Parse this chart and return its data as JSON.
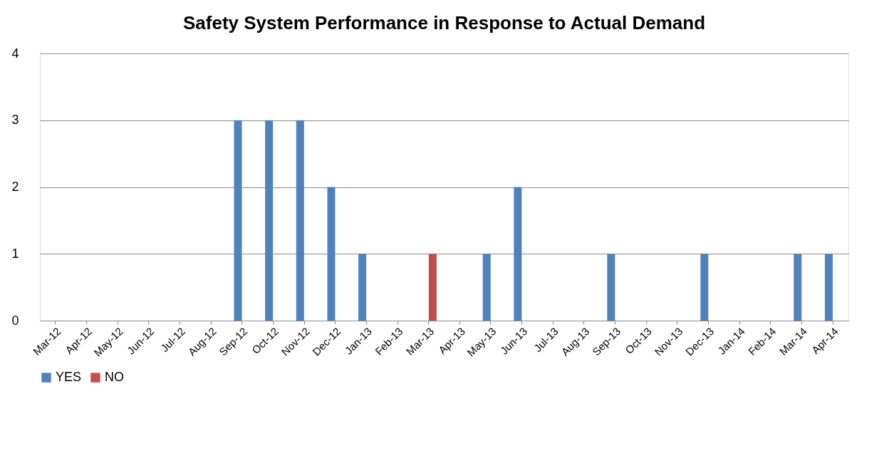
{
  "chart_data": {
    "type": "bar",
    "title": "Safety System Performance in Response to Actual Demand",
    "categories": [
      "Mar-12",
      "Apr-12",
      "May-12",
      "Jun-12",
      "Jul-12",
      "Aug-12",
      "Sep-12",
      "Oct-12",
      "Nov-12",
      "Dec-12",
      "Jan-13",
      "Feb-13",
      "Mar-13",
      "Apr-13",
      "May-13",
      "Jun-13",
      "Jul-13",
      "Aug-13",
      "Sep-13",
      "Oct-13",
      "Nov-13",
      "Dec-13",
      "Jan-14",
      "Feb-14",
      "Mar-14",
      "Apr-14"
    ],
    "series": [
      {
        "name": "YES",
        "color": "#4f81bd",
        "values": [
          0,
          0,
          0,
          0,
          0,
          0,
          3,
          3,
          3,
          2,
          1,
          0,
          0,
          0,
          1,
          2,
          0,
          0,
          1,
          0,
          0,
          1,
          0,
          0,
          1,
          1
        ]
      },
      {
        "name": "NO",
        "color": "#c0504d",
        "values": [
          0,
          0,
          0,
          0,
          0,
          0,
          0,
          0,
          0,
          0,
          0,
          0,
          1,
          0,
          0,
          0,
          0,
          0,
          0,
          0,
          0,
          0,
          0,
          0,
          0,
          0
        ]
      }
    ],
    "ylim": [
      0,
      4
    ],
    "yticks": [
      0,
      1,
      2,
      3,
      4
    ],
    "grid": "y",
    "legend": "bottom"
  }
}
